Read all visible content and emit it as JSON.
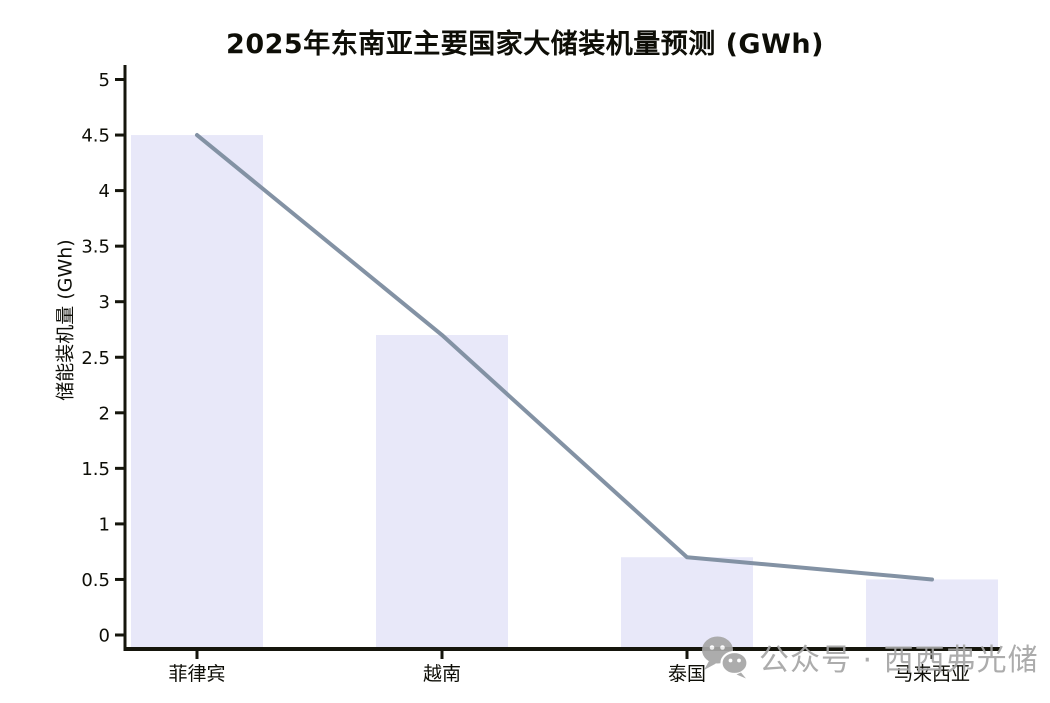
{
  "watermark": {
    "text": "公众号 · 西西弗光储",
    "color": "#a6a6a6"
  },
  "chart_data": {
    "type": "bar",
    "title": "2025年东南亚主要国家大储装机量预测 (GWh)",
    "categories": [
      "菲律宾",
      "越南",
      "泰国",
      "马来西亚"
    ],
    "series": [
      {
        "type": "bar",
        "values": [
          4.5,
          2.7,
          0.7,
          0.5
        ]
      },
      {
        "type": "line",
        "values": [
          4.5,
          2.7,
          0.7,
          0.5
        ]
      }
    ],
    "xlabel": "",
    "ylabel": "储能装机量 (GWh)",
    "ylim": [
      0,
      5
    ],
    "yticks": [
      0,
      0.5,
      1,
      1.5,
      2,
      2.5,
      3,
      3.5,
      4,
      4.5,
      5
    ],
    "grid": false,
    "legend": "none",
    "colors": {
      "bar": "#e8e8f9",
      "line": "#8392a4",
      "axis": "#15150c",
      "text": "#0e0e07"
    }
  }
}
